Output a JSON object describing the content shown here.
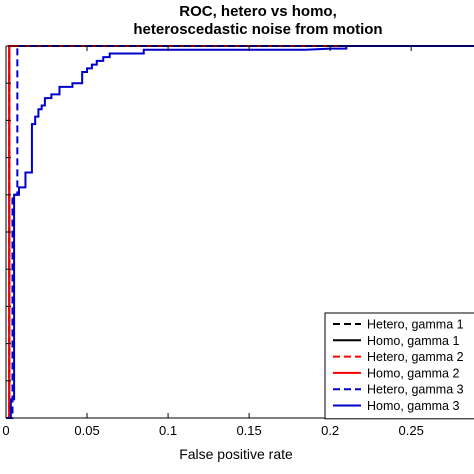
{
  "chart_data": {
    "type": "line",
    "title": [
      "ROC, hetero vs homo,",
      "heteroscedastic noise from motion"
    ],
    "xlabel": "False positive rate",
    "ylabel": "",
    "xlim": [
      0,
      0.29
    ],
    "ylim": [
      0,
      1
    ],
    "xticks": [
      0,
      0.05,
      0.1,
      0.15,
      0.2,
      0.25
    ],
    "xtick_labels": [
      "0",
      "0.05",
      "0.1",
      "0.15",
      "0.2",
      "0.25"
    ],
    "grid": false,
    "legend_position": "bottom-right",
    "series": [
      {
        "name": "Hetero, gamma 1",
        "color": "#000000",
        "dash": "dashed",
        "x": [
          0,
          0.002,
          0.002,
          0.29
        ],
        "y": [
          0,
          0,
          1,
          1
        ]
      },
      {
        "name": "Homo, gamma 1",
        "color": "#000000",
        "dash": "solid",
        "x": [
          0,
          0.002,
          0.002,
          0.29
        ],
        "y": [
          0,
          0,
          1,
          1
        ]
      },
      {
        "name": "Hetero, gamma 2",
        "color": "#ff0000",
        "dash": "dashed",
        "x": [
          0,
          0.002,
          0.002,
          0.29
        ],
        "y": [
          0,
          0,
          1,
          1
        ]
      },
      {
        "name": "Homo, gamma 2",
        "color": "#ff0000",
        "dash": "solid",
        "x": [
          0,
          0.002,
          0.002,
          0.29
        ],
        "y": [
          0,
          0,
          1,
          1
        ]
      },
      {
        "name": "Hetero, gamma 3",
        "color": "#0000cc",
        "dash": "dashed",
        "x": [
          0,
          0.004,
          0.004,
          0.007,
          0.007,
          0.29
        ],
        "y": [
          0,
          0,
          0.6,
          0.6,
          1,
          1
        ]
      },
      {
        "name": "Homo, gamma 3",
        "color": "#0000cc",
        "dash": "solid",
        "x": [
          0,
          0.003,
          0.003,
          0.005,
          0.005,
          0.008,
          0.008,
          0.012,
          0.012,
          0.016,
          0.016,
          0.018,
          0.018,
          0.02,
          0.02,
          0.022,
          0.022,
          0.024,
          0.024,
          0.028,
          0.028,
          0.033,
          0.033,
          0.041,
          0.041,
          0.047,
          0.047,
          0.05,
          0.05,
          0.053,
          0.053,
          0.056,
          0.056,
          0.06,
          0.06,
          0.064,
          0.064,
          0.085,
          0.085,
          0.185,
          0.2,
          0.21,
          0.21,
          0.29
        ],
        "y": [
          0,
          0,
          0.05,
          0.05,
          0.6,
          0.6,
          0.62,
          0.62,
          0.66,
          0.66,
          0.79,
          0.79,
          0.81,
          0.81,
          0.83,
          0.83,
          0.84,
          0.84,
          0.86,
          0.86,
          0.87,
          0.87,
          0.89,
          0.89,
          0.9,
          0.9,
          0.93,
          0.93,
          0.94,
          0.94,
          0.95,
          0.95,
          0.96,
          0.96,
          0.97,
          0.97,
          0.98,
          0.98,
          0.99,
          0.99,
          0.993,
          0.993,
          1.0,
          1.0
        ]
      }
    ]
  }
}
